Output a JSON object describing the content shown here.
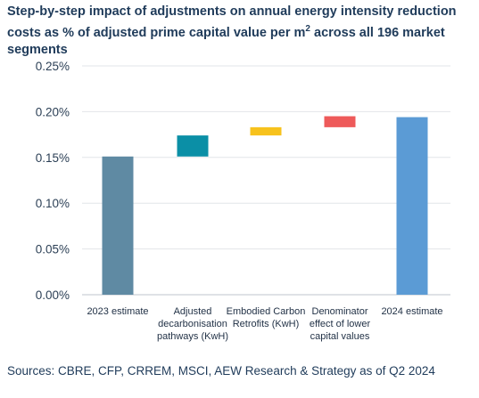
{
  "title": "Step-by-step impact of adjustments on annual energy intensity reduction costs as % of adjusted prime capital value per m² across all 196 market segments",
  "source": "Sources: CBRE, CFP, CRREM, MSCI, AEW Research & Strategy as of Q2 2024",
  "chart_data": {
    "type": "bar",
    "subtype": "waterfall",
    "title": "Step-by-step impact of adjustments on annual energy intensity reduction costs as % of adjusted prime capital value per m² across all 196 market segments",
    "xlabel": "",
    "ylabel": "",
    "ylim": [
      0,
      0.25
    ],
    "y_ticks": [
      0,
      0.05,
      0.1,
      0.15,
      0.2,
      0.25
    ],
    "y_tick_labels": [
      "0.00%",
      "0.05%",
      "0.10%",
      "0.15%",
      "0.20%",
      "0.25%"
    ],
    "grid": true,
    "legend": "none",
    "categories": [
      "2023 estimate",
      "Adjusted decarbonisation pathways (KwH)",
      "Embodied Carbon Retrofits (KwH)",
      "Denominator effect of lower capital values",
      "2024 estimate"
    ],
    "bars": [
      {
        "category": "2023 estimate",
        "kind": "total",
        "start": 0,
        "end": 0.151,
        "color": "#5f8aa3"
      },
      {
        "category": "Adjusted decarbonisation pathways (KwH)",
        "kind": "delta",
        "start": 0.151,
        "end": 0.174,
        "color": "#0b8fa6"
      },
      {
        "category": "Embodied Carbon Retrofits (KwH)",
        "kind": "delta",
        "start": 0.174,
        "end": 0.183,
        "color": "#f7c21d"
      },
      {
        "category": "Denominator effect of lower capital values",
        "kind": "delta",
        "start": 0.183,
        "end": 0.195,
        "color": "#ee5a5a"
      },
      {
        "category": "2024 estimate",
        "kind": "total",
        "start": 0,
        "end": 0.194,
        "color": "#5b9bd5"
      }
    ]
  }
}
